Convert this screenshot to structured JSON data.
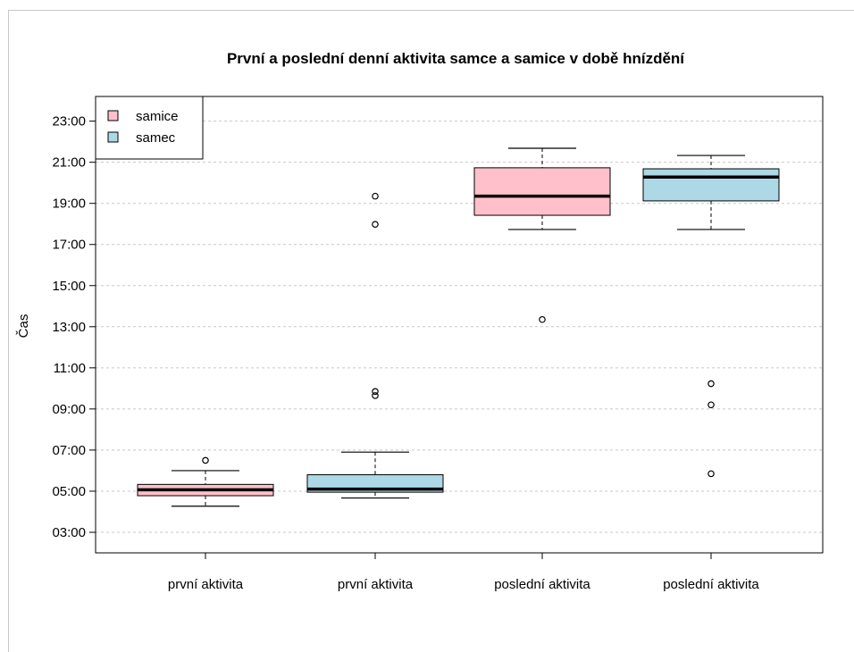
{
  "chart_data": {
    "type": "box",
    "title": "První a poslední denní aktivita samce a samice v době hnízdění",
    "xlabel": "",
    "ylabel": "Čas",
    "y_unit": "hours",
    "ylim": [
      2.0,
      24.2
    ],
    "y_ticks": [
      3,
      5,
      7,
      9,
      11,
      13,
      15,
      17,
      19,
      21,
      23
    ],
    "y_tick_labels": [
      "03:00",
      "05:00",
      "07:00",
      "09:00",
      "11:00",
      "13:00",
      "15:00",
      "17:00",
      "19:00",
      "21:00",
      "23:00"
    ],
    "grid": "horizontal dotted",
    "legend": {
      "placement": "top-left",
      "entries": [
        {
          "label": "samice",
          "color": "#FFC0CB"
        },
        {
          "label": "samec",
          "color": "#ADD8E6"
        }
      ]
    },
    "categories": [
      "první aktivita",
      "první aktivita",
      "poslední aktivita",
      "poslední aktivita"
    ],
    "boxes": [
      {
        "category": "první aktivita",
        "group": "samice",
        "color": "#FFC0CB",
        "whisker_low": 4.27,
        "q1": 4.78,
        "median": 5.07,
        "q3": 5.33,
        "whisker_high": 6.0,
        "outliers": [
          6.5
        ]
      },
      {
        "category": "první aktivita",
        "group": "samec",
        "color": "#ADD8E6",
        "whisker_low": 4.67,
        "q1": 4.95,
        "median": 5.1,
        "q3": 5.8,
        "whisker_high": 6.9,
        "outliers": [
          9.65,
          9.85,
          17.98,
          19.35
        ]
      },
      {
        "category": "poslední aktivita",
        "group": "samice",
        "color": "#FFC0CB",
        "whisker_low": 17.73,
        "q1": 18.42,
        "median": 19.35,
        "q3": 20.73,
        "whisker_high": 21.68,
        "outliers": [
          13.35
        ]
      },
      {
        "category": "poslední aktivita",
        "group": "samec",
        "color": "#ADD8E6",
        "whisker_low": 17.73,
        "q1": 19.12,
        "median": 20.28,
        "q3": 20.68,
        "whisker_high": 21.33,
        "outliers": [
          5.85,
          9.2,
          10.23
        ]
      }
    ]
  }
}
